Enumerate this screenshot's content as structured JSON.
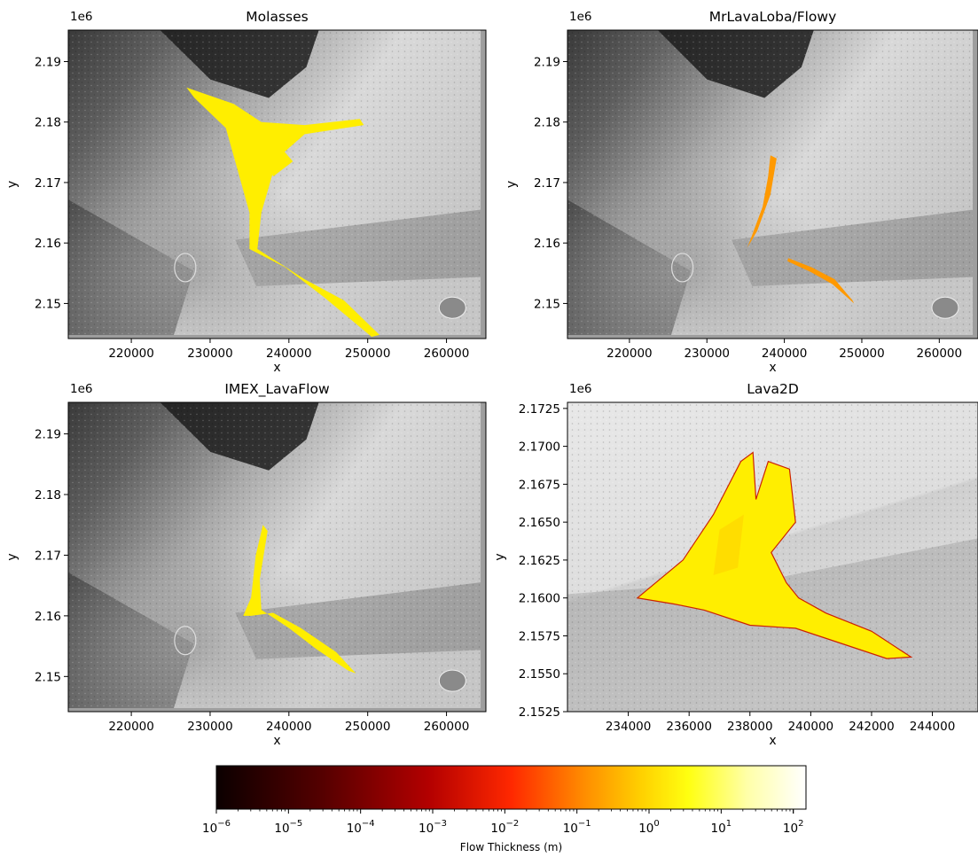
{
  "figure": {
    "colorbar": {
      "label": "Flow Thickness (m)",
      "scale": "log",
      "range": [
        1e-06,
        150
      ],
      "colormap": "hot",
      "ticks": [
        {
          "base": "10",
          "exp": "−6"
        },
        {
          "base": "10",
          "exp": "−5"
        },
        {
          "base": "10",
          "exp": "−4"
        },
        {
          "base": "10",
          "exp": "−3"
        },
        {
          "base": "10",
          "exp": "−2"
        },
        {
          "base": "10",
          "exp": "−1"
        },
        {
          "base": "10",
          "exp": "0"
        },
        {
          "base": "10",
          "exp": "1"
        },
        {
          "base": "10",
          "exp": "2"
        }
      ],
      "tick_values": [
        1e-06,
        1e-05,
        0.0001,
        0.001,
        0.01,
        0.1,
        1,
        10,
        100
      ],
      "colors": {
        "black": "#000000",
        "dark_red": "#8b0000",
        "red": "#ff0000",
        "orange": "#ff9900",
        "yellow": "#ffff00",
        "white": "#ffffff"
      }
    }
  },
  "chart_data": [
    {
      "type": "heatmap",
      "title": "Molasses",
      "xlabel": "x",
      "ylabel": "y",
      "y_offset": "1e6",
      "xlim": [
        212000,
        265000
      ],
      "ylim": [
        2.1442,
        2.1952
      ],
      "x_ticks": [
        "220000",
        "230000",
        "240000",
        "250000",
        "260000"
      ],
      "y_ticks": [
        "2.15",
        "2.16",
        "2.17",
        "2.18",
        "2.19"
      ],
      "flow_color": "#ffee00",
      "flow_extent_x": [
        227000,
        251500
      ],
      "flow_extent_y": [
        2.1445,
        2.1857
      ],
      "approx_flow_thickness_m": 1,
      "background": "hillshade"
    },
    {
      "type": "heatmap",
      "title": "MrLavaLoba/Flowy",
      "xlabel": "x",
      "ylabel": "y",
      "y_offset": "1e6",
      "xlim": [
        212000,
        265000
      ],
      "ylim": [
        2.1442,
        2.1952
      ],
      "x_ticks": [
        "220000",
        "230000",
        "240000",
        "250000",
        "260000"
      ],
      "y_ticks": [
        "2.15",
        "2.16",
        "2.17",
        "2.18",
        "2.19"
      ],
      "flow_color": "#ff9900",
      "flow_extent_x": [
        235000,
        249000
      ],
      "flow_extent_y": [
        2.1502,
        2.1745
      ],
      "approx_flow_thickness_m": 0.1,
      "background": "hillshade"
    },
    {
      "type": "heatmap",
      "title": "IMEX_LavaFlow",
      "xlabel": "x",
      "ylabel": "y",
      "y_offset": "1e6",
      "xlim": [
        212000,
        265000
      ],
      "ylim": [
        2.1442,
        2.1952
      ],
      "x_ticks": [
        "220000",
        "230000",
        "240000",
        "250000",
        "260000"
      ],
      "y_ticks": [
        "2.15",
        "2.16",
        "2.17",
        "2.18",
        "2.19"
      ],
      "flow_color": "#ffee00",
      "flow_extent_x": [
        234000,
        248500
      ],
      "flow_extent_y": [
        2.1505,
        2.175
      ],
      "approx_flow_thickness_m": 1,
      "background": "hillshade"
    },
    {
      "type": "heatmap",
      "title": "Lava2D",
      "xlabel": "x",
      "ylabel": "y",
      "y_offset": "1e6",
      "xlim": [
        232000,
        245500
      ],
      "ylim": [
        2.1525,
        2.1729
      ],
      "x_ticks": [
        "234000",
        "236000",
        "238000",
        "240000",
        "242000",
        "244000"
      ],
      "y_ticks": [
        "2.1525",
        "2.1550",
        "2.1575",
        "2.1600",
        "2.1625",
        "2.1650",
        "2.1675",
        "2.1700",
        "2.1725"
      ],
      "flow_color": "#ffee00",
      "flow_edge_color": "#cc2200",
      "flow_extent_x": [
        234300,
        243300
      ],
      "flow_extent_y": [
        2.1561,
        2.1696
      ],
      "approx_flow_thickness_m": 1,
      "background": "hillshade"
    }
  ]
}
